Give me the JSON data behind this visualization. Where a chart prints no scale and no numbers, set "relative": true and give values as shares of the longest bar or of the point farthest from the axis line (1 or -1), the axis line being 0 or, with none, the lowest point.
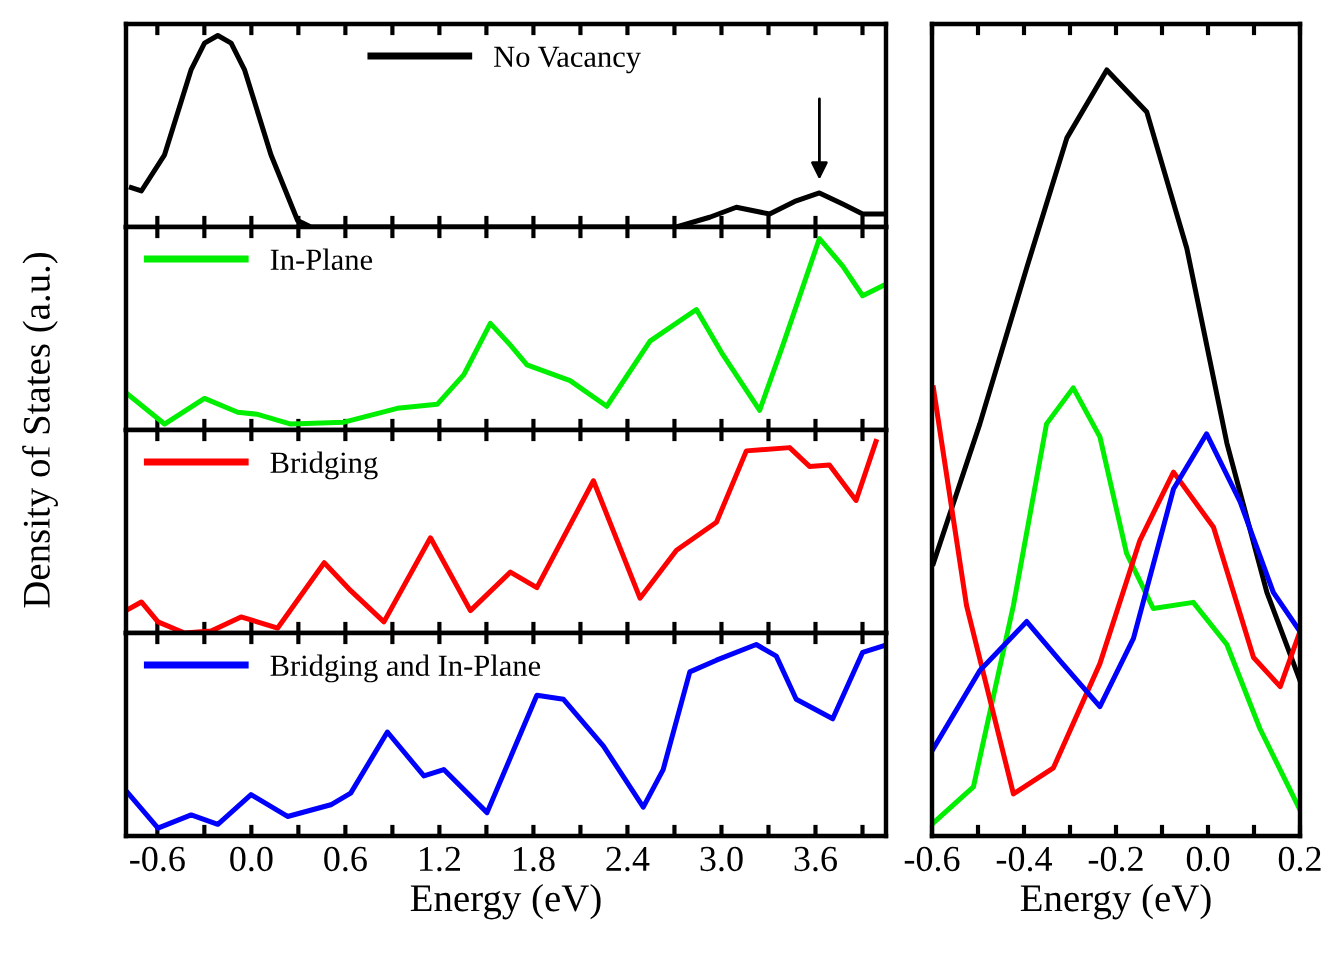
{
  "chart_data": [
    {
      "type": "line",
      "relative": true,
      "ylabel": "Density of States (a.u.)",
      "xlim": [
        -0.8,
        4.05
      ],
      "tick_labels": false,
      "legend": "top",
      "grid": false,
      "xticks": [
        {
          "value": -0.6,
          "label": null
        },
        {
          "value": -0.3,
          "label": null
        },
        {
          "value": 0,
          "label": null
        },
        {
          "value": 0.3,
          "label": null
        },
        {
          "value": 0.6,
          "label": null
        },
        {
          "value": 0.9,
          "label": null
        },
        {
          "value": 1.2,
          "label": null
        },
        {
          "value": 1.5,
          "label": null
        },
        {
          "value": 1.8,
          "label": null
        },
        {
          "value": 2.1,
          "label": null
        },
        {
          "value": 2.4,
          "label": null
        },
        {
          "value": 2.7,
          "label": null
        },
        {
          "value": 3.0,
          "label": null
        },
        {
          "value": 3.3,
          "label": null
        },
        {
          "value": 3.6,
          "label": null
        },
        {
          "value": 3.9,
          "label": null
        }
      ],
      "series": [
        {
          "name": "No Vacancy",
          "color": "#000000",
          "x": [
            -0.766,
            -0.702,
            -0.554,
            -0.384,
            -0.299,
            -0.214,
            -0.129,
            -0.044,
            0.125,
            0.295,
            0.38,
            2.713,
            2.925,
            3.095,
            3.307,
            3.477,
            3.625,
            3.774,
            3.901,
            4.028
          ],
          "values": [
            0.205,
            0.188,
            0.377,
            0.822,
            0.96,
            1,
            0.96,
            0.822,
            0.377,
            0.034,
            0,
            0,
            0.051,
            0.103,
            0.068,
            0.137,
            0.178,
            0.12,
            0.068,
            0.068
          ]
        }
      ]
    },
    {
      "type": "line",
      "relative": true,
      "xlim": [
        -0.8,
        4.05
      ],
      "tick_labels": false,
      "legend": "top left",
      "grid": false,
      "xticks": [
        {
          "value": -0.6,
          "label": null
        },
        {
          "value": -0.3,
          "label": null
        },
        {
          "value": 0,
          "label": null
        },
        {
          "value": 0.3,
          "label": null
        },
        {
          "value": 0.6,
          "label": null
        },
        {
          "value": 0.9,
          "label": null
        },
        {
          "value": 1.2,
          "label": null
        },
        {
          "value": 1.5,
          "label": null
        },
        {
          "value": 1.8,
          "label": null
        },
        {
          "value": 2.1,
          "label": null
        },
        {
          "value": 2.4,
          "label": null
        },
        {
          "value": 2.7,
          "label": null
        },
        {
          "value": 3.0,
          "label": null
        },
        {
          "value": 3.3,
          "label": null
        },
        {
          "value": 3.6,
          "label": null
        },
        {
          "value": 3.9,
          "label": null
        }
      ],
      "series": [
        {
          "name": "In-Plane",
          "color": "#00ee00",
          "x": [
            -0.787,
            -0.554,
            -0.299,
            -0.087,
            0.04,
            0.252,
            0.592,
            0.931,
            1.186,
            1.356,
            1.525,
            1.653,
            1.759,
            2.034,
            2.268,
            2.544,
            2.84,
            3.01,
            3.244,
            3.392,
            3.625,
            3.774,
            3.901,
            4.028
          ],
          "values": [
            0.186,
            0.031,
            0.165,
            0.093,
            0.082,
            0.031,
            0.041,
            0.113,
            0.134,
            0.289,
            0.557,
            0.443,
            0.34,
            0.258,
            0.124,
            0.464,
            0.629,
            0.392,
            0.103,
            0.443,
            1,
            0.856,
            0.701,
            0.753
          ]
        }
      ]
    },
    {
      "type": "line",
      "relative": true,
      "xlim": [
        -0.8,
        4.05
      ],
      "tick_labels": false,
      "legend": "top left",
      "grid": false,
      "xticks": [
        {
          "value": -0.6,
          "label": null
        },
        {
          "value": -0.3,
          "label": null
        },
        {
          "value": 0,
          "label": null
        },
        {
          "value": 0.3,
          "label": null
        },
        {
          "value": 0.6,
          "label": null
        },
        {
          "value": 0.9,
          "label": null
        },
        {
          "value": 1.2,
          "label": null
        },
        {
          "value": 1.5,
          "label": null
        },
        {
          "value": 1.8,
          "label": null
        },
        {
          "value": 2.1,
          "label": null
        },
        {
          "value": 2.4,
          "label": null
        },
        {
          "value": 2.7,
          "label": null
        },
        {
          "value": 3.0,
          "label": null
        },
        {
          "value": 3.3,
          "label": null
        },
        {
          "value": 3.6,
          "label": null
        },
        {
          "value": 3.9,
          "label": null
        }
      ],
      "series": [
        {
          "name": "Bridging",
          "color": "#ff0000",
          "x": [
            -0.787,
            -0.702,
            -0.596,
            -0.426,
            -0.257,
            -0.066,
            0.168,
            0.465,
            0.634,
            0.846,
            1.143,
            1.398,
            1.653,
            1.822,
            2.183,
            2.48,
            2.713,
            2.968,
            3.159,
            3.435,
            3.562,
            3.689,
            3.859,
            3.986
          ],
          "values": [
            0.123,
            0.162,
            0.058,
            0,
            0.01,
            0.084,
            0.026,
            0.367,
            0.221,
            0.058,
            0.497,
            0.117,
            0.318,
            0.237,
            0.795,
            0.182,
            0.432,
            0.578,
            0.951,
            0.968,
            0.87,
            0.877,
            0.692,
            1
          ]
        }
      ]
    },
    {
      "type": "line",
      "relative": true,
      "xlabel": "Energy (eV)",
      "xlim": [
        -0.8,
        4.05
      ],
      "tick_labels": "x",
      "legend": "top left",
      "grid": false,
      "xticks": [
        {
          "value": -0.6,
          "label": "-0.6"
        },
        {
          "value": -0.3,
          "label": null
        },
        {
          "value": 0,
          "label": "0.0"
        },
        {
          "value": 0.3,
          "label": null
        },
        {
          "value": 0.6,
          "label": "0.6"
        },
        {
          "value": 0.9,
          "label": null
        },
        {
          "value": 1.2,
          "label": "1.2"
        },
        {
          "value": 1.5,
          "label": null
        },
        {
          "value": 1.8,
          "label": "1.8"
        },
        {
          "value": 2.1,
          "label": null
        },
        {
          "value": 2.4,
          "label": "2.4"
        },
        {
          "value": 2.7,
          "label": null
        },
        {
          "value": 3.0,
          "label": "3.0"
        },
        {
          "value": 3.3,
          "label": null
        },
        {
          "value": 3.6,
          "label": "3.6"
        },
        {
          "value": 3.9,
          "label": null
        }
      ],
      "series": [
        {
          "name": "Bridging and In-Plane",
          "color": "#0000ff",
          "x": [
            -0.787,
            -0.596,
            -0.384,
            -0.214,
            -0.002,
            0.231,
            0.507,
            0.634,
            0.868,
            1.101,
            1.228,
            1.504,
            1.822,
            1.992,
            2.247,
            2.501,
            2.628,
            2.798,
            2.968,
            3.222,
            3.35,
            3.477,
            3.71,
            3.901,
            4.028
          ],
          "values": [
            0.224,
            0.041,
            0.11,
            0.061,
            0.216,
            0.102,
            0.163,
            0.224,
            0.543,
            0.314,
            0.347,
            0.122,
            0.735,
            0.714,
            0.469,
            0.151,
            0.347,
            0.857,
            0.918,
            1,
            0.939,
            0.714,
            0.612,
            0.959,
            0.992
          ]
        }
      ]
    },
    {
      "type": "line",
      "relative": true,
      "xlabel": "Energy (eV)",
      "xlim": [
        -0.6,
        0.2
      ],
      "tick_labels": "x",
      "legend": false,
      "grid": false,
      "xticks": [
        {
          "value": -0.6,
          "label": "-0.6"
        },
        {
          "value": -0.5,
          "label": null
        },
        {
          "value": -0.4,
          "label": "-0.4"
        },
        {
          "value": -0.3,
          "label": null
        },
        {
          "value": -0.2,
          "label": "-0.2"
        },
        {
          "value": -0.1,
          "label": null
        },
        {
          "value": 0,
          "label": "0.0"
        },
        {
          "value": 0.1,
          "label": null
        },
        {
          "value": 0.2,
          "label": "0.2"
        }
      ],
      "series": [
        {
          "color": "#000000",
          "x": [
            -0.597,
            -0.496,
            -0.394,
            -0.307,
            -0.22,
            -0.133,
            -0.046,
            0.041,
            0.128,
            0.2
          ],
          "values": [
            0.356,
            0.538,
            0.742,
            0.911,
            1,
            0.945,
            0.767,
            0.513,
            0.318,
            0.203
          ]
        },
        {
          "color": "#00ee00",
          "x": [
            -0.597,
            -0.51,
            -0.423,
            -0.351,
            -0.293,
            -0.235,
            -0.177,
            -0.119,
            -0.032,
            0.041,
            0.113,
            0.2
          ],
          "values": [
            0.017,
            0.064,
            0.301,
            0.538,
            0.585,
            0.521,
            0.369,
            0.297,
            0.305,
            0.25,
            0.14,
            0.034
          ]
        },
        {
          "color": "#ff0000",
          "x": [
            -0.597,
            -0.525,
            -0.423,
            -0.336,
            -0.235,
            -0.148,
            -0.075,
            0.012,
            0.099,
            0.157,
            0.2
          ],
          "values": [
            0.585,
            0.301,
            0.055,
            0.089,
            0.225,
            0.386,
            0.475,
            0.403,
            0.233,
            0.195,
            0.267
          ]
        },
        {
          "color": "#0000ff",
          "x": [
            -0.597,
            -0.496,
            -0.394,
            -0.322,
            -0.235,
            -0.162,
            -0.075,
            -0.003,
            0.07,
            0.142,
            0.2
          ],
          "values": [
            0.114,
            0.216,
            0.28,
            0.229,
            0.169,
            0.258,
            0.453,
            0.525,
            0.436,
            0.318,
            0.267
          ]
        }
      ]
    }
  ]
}
